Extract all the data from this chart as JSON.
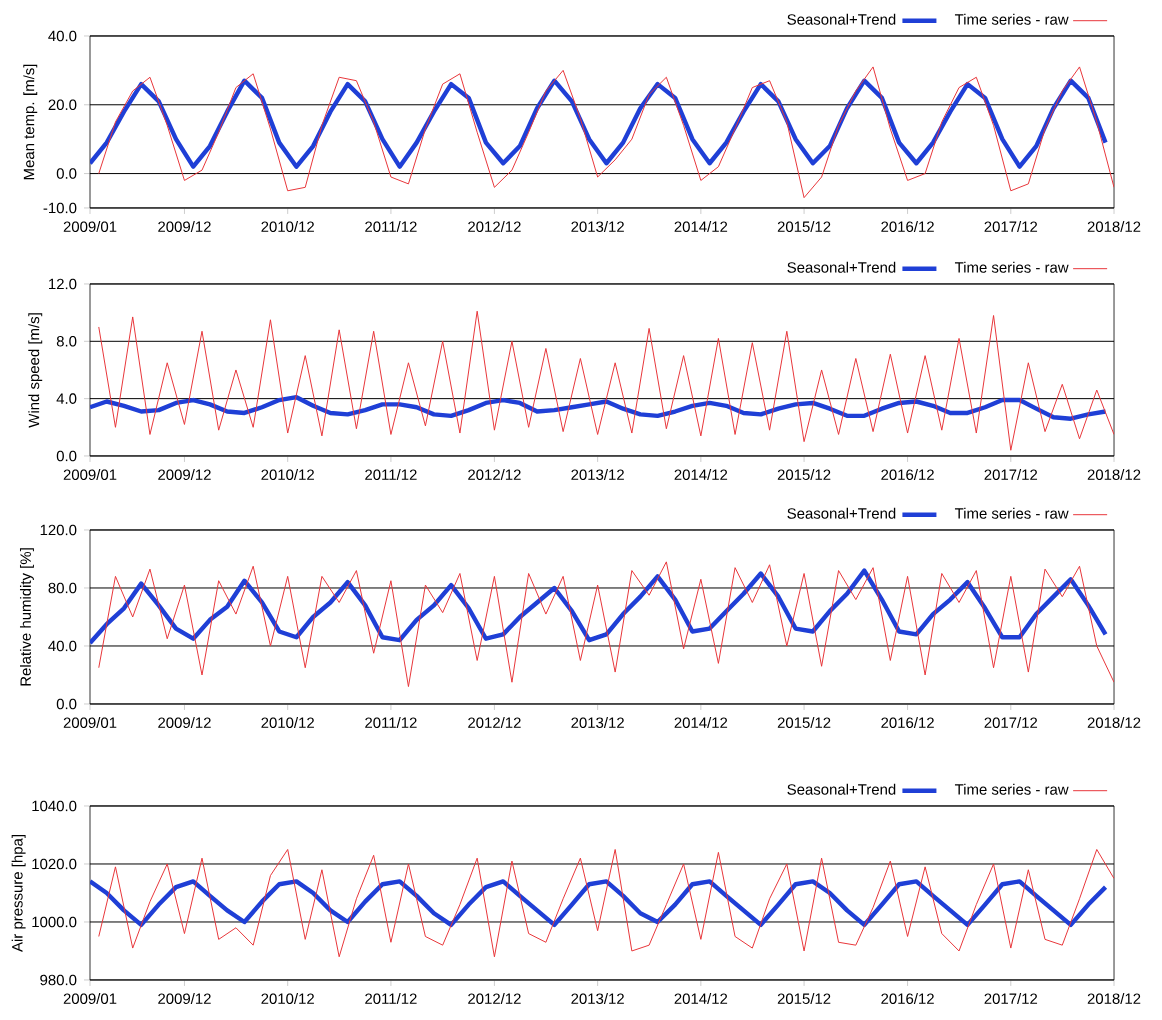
{
  "chart_data": [
    {
      "type": "line",
      "ylabel": "Mean temp. [m/s]",
      "xlim": [
        "2009-01",
        "2018-12"
      ],
      "ylim": [
        -10,
        40
      ],
      "grid": "y",
      "legend": "top right",
      "xticks": [
        {
          "value": "2009-01",
          "label": "2009/01"
        },
        {
          "value": "2009-12",
          "label": "2009/12"
        },
        {
          "value": "2010-12",
          "label": "2010/12"
        },
        {
          "value": "2011-12",
          "label": "2011/12"
        },
        {
          "value": "2012-12",
          "label": "2012/12"
        },
        {
          "value": "2013-12",
          "label": "2013/12"
        },
        {
          "value": "2014-12",
          "label": "2014/12"
        },
        {
          "value": "2015-12",
          "label": "2015/12"
        },
        {
          "value": "2016-12",
          "label": "2016/12"
        },
        {
          "value": "2017-12",
          "label": "2017/12"
        },
        {
          "value": "2018-12",
          "label": "2018/12"
        }
      ],
      "yticks": [
        {
          "value": -10,
          "label": "-10.0"
        },
        {
          "value": 0,
          "label": "0.0"
        },
        {
          "value": 20,
          "label": "20.0"
        },
        {
          "value": 40,
          "label": "40.0"
        }
      ],
      "series": [
        {
          "name": "Seasonal+Trend",
          "color": "#1f3fd6",
          "x": [
            "2009-01",
            "2009-03",
            "2009-05",
            "2009-07",
            "2009-09",
            "2009-11",
            "2010-01",
            "2010-03",
            "2010-05",
            "2010-07",
            "2010-09",
            "2010-11",
            "2011-01",
            "2011-03",
            "2011-05",
            "2011-07",
            "2011-09",
            "2011-11",
            "2012-01",
            "2012-03",
            "2012-05",
            "2012-07",
            "2012-09",
            "2012-11",
            "2013-01",
            "2013-03",
            "2013-05",
            "2013-07",
            "2013-09",
            "2013-11",
            "2014-01",
            "2014-03",
            "2014-05",
            "2014-07",
            "2014-09",
            "2014-11",
            "2015-01",
            "2015-03",
            "2015-05",
            "2015-07",
            "2015-09",
            "2015-11",
            "2016-01",
            "2016-03",
            "2016-05",
            "2016-07",
            "2016-09",
            "2016-11",
            "2017-01",
            "2017-03",
            "2017-05",
            "2017-07",
            "2017-09",
            "2017-11",
            "2018-01",
            "2018-03",
            "2018-05",
            "2018-07",
            "2018-09",
            "2018-11"
          ],
          "values": [
            3,
            9,
            18,
            26,
            21,
            10,
            2,
            8,
            18,
            27,
            22,
            9,
            2,
            8,
            18,
            26,
            21,
            10,
            2,
            9,
            18,
            26,
            22,
            9,
            3,
            8,
            19,
            27,
            21,
            10,
            3,
            9,
            19,
            26,
            22,
            10,
            3,
            9,
            18,
            26,
            21,
            10,
            3,
            8,
            19,
            27,
            22,
            9,
            3,
            9,
            18,
            26,
            22,
            10,
            2,
            8,
            19,
            27,
            22,
            9
          ]
        },
        {
          "name": "Time series - raw",
          "color": "#e8363a",
          "x": [
            "2009-02",
            "2009-04",
            "2009-06",
            "2009-08",
            "2009-10",
            "2009-12",
            "2010-02",
            "2010-04",
            "2010-06",
            "2010-08",
            "2010-10",
            "2010-12",
            "2011-02",
            "2011-04",
            "2011-06",
            "2011-08",
            "2011-10",
            "2011-12",
            "2012-02",
            "2012-04",
            "2012-06",
            "2012-08",
            "2012-10",
            "2012-12",
            "2013-02",
            "2013-04",
            "2013-06",
            "2013-08",
            "2013-10",
            "2013-12",
            "2014-02",
            "2014-04",
            "2014-06",
            "2014-08",
            "2014-10",
            "2014-12",
            "2015-02",
            "2015-04",
            "2015-06",
            "2015-08",
            "2015-10",
            "2015-12",
            "2016-02",
            "2016-04",
            "2016-06",
            "2016-08",
            "2016-10",
            "2016-12",
            "2017-02",
            "2017-04",
            "2017-06",
            "2017-08",
            "2017-10",
            "2017-12",
            "2018-02",
            "2018-04",
            "2018-06",
            "2018-08",
            "2018-10",
            "2018-12"
          ],
          "values": [
            0,
            15,
            24,
            28,
            14,
            -2,
            1,
            12,
            25,
            29,
            13,
            -5,
            -4,
            14,
            28,
            27,
            15,
            -1,
            -3,
            13,
            26,
            29,
            12,
            -4,
            1,
            12,
            24,
            30,
            16,
            -1,
            4,
            10,
            23,
            28,
            14,
            -2,
            2,
            13,
            25,
            27,
            15,
            -7,
            -1,
            14,
            24,
            31,
            13,
            -2,
            0,
            15,
            25,
            28,
            14,
            -5,
            -3,
            13,
            24,
            31,
            15,
            -4
          ]
        }
      ]
    },
    {
      "type": "line",
      "ylabel": "Wind speed [m/s]",
      "xlim": [
        "2009-01",
        "2018-12"
      ],
      "ylim": [
        0,
        12
      ],
      "grid": "y",
      "legend": "top right",
      "xticks": [
        {
          "value": "2009-01",
          "label": "2009/01"
        },
        {
          "value": "2009-12",
          "label": "2009/12"
        },
        {
          "value": "2010-12",
          "label": "2010/12"
        },
        {
          "value": "2011-12",
          "label": "2011/12"
        },
        {
          "value": "2012-12",
          "label": "2012/12"
        },
        {
          "value": "2013-12",
          "label": "2013/12"
        },
        {
          "value": "2014-12",
          "label": "2014/12"
        },
        {
          "value": "2015-12",
          "label": "2015/12"
        },
        {
          "value": "2016-12",
          "label": "2016/12"
        },
        {
          "value": "2017-12",
          "label": "2017/12"
        },
        {
          "value": "2018-12",
          "label": "2018/12"
        }
      ],
      "yticks": [
        {
          "value": 0,
          "label": "0.0"
        },
        {
          "value": 4,
          "label": "4.0"
        },
        {
          "value": 8,
          "label": "8.0"
        },
        {
          "value": 12,
          "label": "12.0"
        }
      ],
      "series": [
        {
          "name": "Seasonal+Trend",
          "color": "#1f3fd6",
          "x": [
            "2009-01",
            "2009-03",
            "2009-05",
            "2009-07",
            "2009-09",
            "2009-11",
            "2010-01",
            "2010-03",
            "2010-05",
            "2010-07",
            "2010-09",
            "2010-11",
            "2011-01",
            "2011-03",
            "2011-05",
            "2011-07",
            "2011-09",
            "2011-11",
            "2012-01",
            "2012-03",
            "2012-05",
            "2012-07",
            "2012-09",
            "2012-11",
            "2013-01",
            "2013-03",
            "2013-05",
            "2013-07",
            "2013-09",
            "2013-11",
            "2014-01",
            "2014-03",
            "2014-05",
            "2014-07",
            "2014-09",
            "2014-11",
            "2015-01",
            "2015-03",
            "2015-05",
            "2015-07",
            "2015-09",
            "2015-11",
            "2016-01",
            "2016-03",
            "2016-05",
            "2016-07",
            "2016-09",
            "2016-11",
            "2017-01",
            "2017-03",
            "2017-05",
            "2017-07",
            "2017-09",
            "2017-11",
            "2018-01",
            "2018-03",
            "2018-05",
            "2018-07",
            "2018-09",
            "2018-11"
          ],
          "values": [
            3.4,
            3.8,
            3.5,
            3.1,
            3.2,
            3.7,
            3.9,
            3.6,
            3.1,
            3.0,
            3.4,
            3.9,
            4.1,
            3.5,
            3.0,
            2.9,
            3.2,
            3.6,
            3.6,
            3.4,
            2.9,
            2.8,
            3.2,
            3.7,
            3.9,
            3.7,
            3.1,
            3.2,
            3.4,
            3.6,
            3.8,
            3.3,
            2.9,
            2.8,
            3.1,
            3.5,
            3.7,
            3.5,
            3.0,
            2.9,
            3.3,
            3.6,
            3.7,
            3.3,
            2.8,
            2.8,
            3.3,
            3.7,
            3.8,
            3.5,
            3.0,
            3.0,
            3.4,
            3.9,
            3.9,
            3.3,
            2.7,
            2.6,
            2.9,
            3.1
          ]
        },
        {
          "name": "Time series - raw",
          "color": "#e8363a",
          "x": [
            "2009-02",
            "2009-04",
            "2009-06",
            "2009-08",
            "2009-10",
            "2009-12",
            "2010-02",
            "2010-04",
            "2010-06",
            "2010-08",
            "2010-10",
            "2010-12",
            "2011-02",
            "2011-04",
            "2011-06",
            "2011-08",
            "2011-10",
            "2011-12",
            "2012-02",
            "2012-04",
            "2012-06",
            "2012-08",
            "2012-10",
            "2012-12",
            "2013-02",
            "2013-04",
            "2013-06",
            "2013-08",
            "2013-10",
            "2013-12",
            "2014-02",
            "2014-04",
            "2014-06",
            "2014-08",
            "2014-10",
            "2014-12",
            "2015-02",
            "2015-04",
            "2015-06",
            "2015-08",
            "2015-10",
            "2015-12",
            "2016-02",
            "2016-04",
            "2016-06",
            "2016-08",
            "2016-10",
            "2016-12",
            "2017-02",
            "2017-04",
            "2017-06",
            "2017-08",
            "2017-10",
            "2017-12",
            "2018-02",
            "2018-04",
            "2018-06",
            "2018-08",
            "2018-10",
            "2018-12"
          ],
          "values": [
            9.0,
            2.0,
            9.7,
            1.5,
            6.5,
            2.2,
            8.7,
            1.8,
            6.0,
            2.0,
            9.5,
            1.6,
            7.0,
            1.4,
            8.8,
            1.9,
            8.7,
            1.5,
            6.5,
            2.1,
            8.0,
            1.6,
            10.1,
            1.8,
            8.0,
            2.0,
            7.5,
            1.7,
            6.8,
            1.5,
            6.5,
            1.6,
            8.9,
            1.9,
            7.0,
            1.4,
            8.2,
            1.5,
            7.9,
            1.8,
            8.7,
            1.0,
            6.0,
            1.5,
            6.8,
            1.7,
            7.1,
            1.6,
            7.0,
            1.8,
            8.2,
            1.6,
            9.8,
            0.4,
            6.5,
            1.7,
            5.0,
            1.2,
            4.6,
            1.5
          ]
        }
      ]
    },
    {
      "type": "line",
      "ylabel": "Relative humidity [%]",
      "xlim": [
        "2009-01",
        "2018-12"
      ],
      "ylim": [
        0,
        120
      ],
      "grid": "y",
      "legend": "top right",
      "xticks": [
        {
          "value": "2009-01",
          "label": "2009/01"
        },
        {
          "value": "2009-12",
          "label": "2009/12"
        },
        {
          "value": "2010-12",
          "label": "2010/12"
        },
        {
          "value": "2011-12",
          "label": "2011/12"
        },
        {
          "value": "2012-12",
          "label": "2012/12"
        },
        {
          "value": "2013-12",
          "label": "2013/12"
        },
        {
          "value": "2014-12",
          "label": "2014/12"
        },
        {
          "value": "2015-12",
          "label": "2015/12"
        },
        {
          "value": "2016-12",
          "label": "2016/12"
        },
        {
          "value": "2017-12",
          "label": "2017/12"
        },
        {
          "value": "2018-12",
          "label": "2018/12"
        }
      ],
      "yticks": [
        {
          "value": 0,
          "label": "0.0"
        },
        {
          "value": 40,
          "label": "40.0"
        },
        {
          "value": 80,
          "label": "80.0"
        },
        {
          "value": 120,
          "label": "120.0"
        }
      ],
      "series": [
        {
          "name": "Seasonal+Trend",
          "color": "#1f3fd6",
          "x": [
            "2009-01",
            "2009-03",
            "2009-05",
            "2009-07",
            "2009-09",
            "2009-11",
            "2010-01",
            "2010-03",
            "2010-05",
            "2010-07",
            "2010-09",
            "2010-11",
            "2011-01",
            "2011-03",
            "2011-05",
            "2011-07",
            "2011-09",
            "2011-11",
            "2012-01",
            "2012-03",
            "2012-05",
            "2012-07",
            "2012-09",
            "2012-11",
            "2013-01",
            "2013-03",
            "2013-05",
            "2013-07",
            "2013-09",
            "2013-11",
            "2014-01",
            "2014-03",
            "2014-05",
            "2014-07",
            "2014-09",
            "2014-11",
            "2015-01",
            "2015-03",
            "2015-05",
            "2015-07",
            "2015-09",
            "2015-11",
            "2016-01",
            "2016-03",
            "2016-05",
            "2016-07",
            "2016-09",
            "2016-11",
            "2017-01",
            "2017-03",
            "2017-05",
            "2017-07",
            "2017-09",
            "2017-11",
            "2018-01",
            "2018-03",
            "2018-05",
            "2018-07",
            "2018-09",
            "2018-11"
          ],
          "values": [
            42,
            55,
            66,
            83,
            68,
            52,
            45,
            58,
            67,
            85,
            70,
            50,
            46,
            60,
            70,
            84,
            68,
            46,
            44,
            58,
            68,
            82,
            66,
            45,
            48,
            60,
            70,
            80,
            64,
            44,
            48,
            62,
            74,
            88,
            72,
            50,
            52,
            64,
            76,
            90,
            74,
            52,
            50,
            64,
            76,
            92,
            72,
            50,
            48,
            62,
            72,
            84,
            66,
            46,
            46,
            62,
            74,
            86,
            68,
            48
          ]
        },
        {
          "name": "Time series - raw",
          "color": "#e8363a",
          "x": [
            "2009-02",
            "2009-04",
            "2009-06",
            "2009-08",
            "2009-10",
            "2009-12",
            "2010-02",
            "2010-04",
            "2010-06",
            "2010-08",
            "2010-10",
            "2010-12",
            "2011-02",
            "2011-04",
            "2011-06",
            "2011-08",
            "2011-10",
            "2011-12",
            "2012-02",
            "2012-04",
            "2012-06",
            "2012-08",
            "2012-10",
            "2012-12",
            "2013-02",
            "2013-04",
            "2013-06",
            "2013-08",
            "2013-10",
            "2013-12",
            "2014-02",
            "2014-04",
            "2014-06",
            "2014-08",
            "2014-10",
            "2014-12",
            "2015-02",
            "2015-04",
            "2015-06",
            "2015-08",
            "2015-10",
            "2015-12",
            "2016-02",
            "2016-04",
            "2016-06",
            "2016-08",
            "2016-10",
            "2016-12",
            "2017-02",
            "2017-04",
            "2017-06",
            "2017-08",
            "2017-10",
            "2017-12",
            "2018-02",
            "2018-04",
            "2018-06",
            "2018-08",
            "2018-10",
            "2018-12"
          ],
          "values": [
            25,
            88,
            60,
            93,
            45,
            82,
            20,
            85,
            62,
            95,
            40,
            88,
            25,
            88,
            70,
            92,
            35,
            85,
            12,
            82,
            63,
            90,
            30,
            88,
            15,
            90,
            62,
            88,
            30,
            82,
            22,
            92,
            75,
            98,
            38,
            86,
            28,
            94,
            70,
            96,
            40,
            90,
            26,
            92,
            72,
            94,
            30,
            88,
            20,
            90,
            70,
            92,
            25,
            88,
            22,
            93,
            74,
            95,
            40,
            15
          ]
        }
      ]
    },
    {
      "type": "line",
      "ylabel": "Air pressure [hpa]",
      "xlim": [
        "2009-01",
        "2018-12"
      ],
      "ylim": [
        980,
        1040
      ],
      "grid": "y",
      "legend": "top right",
      "xticks": [
        {
          "value": "2009-01",
          "label": "2009/01"
        },
        {
          "value": "2009-12",
          "label": "2009/12"
        },
        {
          "value": "2010-12",
          "label": "2010/12"
        },
        {
          "value": "2011-12",
          "label": "2011/12"
        },
        {
          "value": "2012-12",
          "label": "2012/12"
        },
        {
          "value": "2013-12",
          "label": "2013/12"
        },
        {
          "value": "2014-12",
          "label": "2014/12"
        },
        {
          "value": "2015-12",
          "label": "2015/12"
        },
        {
          "value": "2016-12",
          "label": "2016/12"
        },
        {
          "value": "2017-12",
          "label": "2017/12"
        },
        {
          "value": "2018-12",
          "label": "2018/12"
        }
      ],
      "yticks": [
        {
          "value": 980,
          "label": "980.0"
        },
        {
          "value": 1000,
          "label": "1000.0"
        },
        {
          "value": 1020,
          "label": "1020.0"
        },
        {
          "value": 1040,
          "label": "1040.0"
        }
      ],
      "series": [
        {
          "name": "Seasonal+Trend",
          "color": "#1f3fd6",
          "x": [
            "2009-01",
            "2009-03",
            "2009-05",
            "2009-07",
            "2009-09",
            "2009-11",
            "2010-01",
            "2010-03",
            "2010-05",
            "2010-07",
            "2010-09",
            "2010-11",
            "2011-01",
            "2011-03",
            "2011-05",
            "2011-07",
            "2011-09",
            "2011-11",
            "2012-01",
            "2012-03",
            "2012-05",
            "2012-07",
            "2012-09",
            "2012-11",
            "2013-01",
            "2013-03",
            "2013-05",
            "2013-07",
            "2013-09",
            "2013-11",
            "2014-01",
            "2014-03",
            "2014-05",
            "2014-07",
            "2014-09",
            "2014-11",
            "2015-01",
            "2015-03",
            "2015-05",
            "2015-07",
            "2015-09",
            "2015-11",
            "2016-01",
            "2016-03",
            "2016-05",
            "2016-07",
            "2016-09",
            "2016-11",
            "2017-01",
            "2017-03",
            "2017-05",
            "2017-07",
            "2017-09",
            "2017-11",
            "2018-01",
            "2018-03",
            "2018-05",
            "2018-07",
            "2018-09",
            "2018-11"
          ],
          "values": [
            1014,
            1010,
            1004,
            999,
            1006,
            1012,
            1014,
            1009,
            1004,
            1000,
            1007,
            1013,
            1014,
            1010,
            1004,
            1000,
            1007,
            1013,
            1014,
            1009,
            1003,
            999,
            1006,
            1012,
            1014,
            1009,
            1004,
            999,
            1006,
            1013,
            1014,
            1009,
            1003,
            1000,
            1006,
            1013,
            1014,
            1009,
            1004,
            999,
            1006,
            1013,
            1014,
            1010,
            1004,
            999,
            1006,
            1013,
            1014,
            1009,
            1004,
            999,
            1006,
            1013,
            1014,
            1009,
            1004,
            999,
            1006,
            1012
          ]
        },
        {
          "name": "Time series - raw",
          "color": "#e8363a",
          "x": [
            "2009-02",
            "2009-04",
            "2009-06",
            "2009-08",
            "2009-10",
            "2009-12",
            "2010-02",
            "2010-04",
            "2010-06",
            "2010-08",
            "2010-10",
            "2010-12",
            "2011-02",
            "2011-04",
            "2011-06",
            "2011-08",
            "2011-10",
            "2011-12",
            "2012-02",
            "2012-04",
            "2012-06",
            "2012-08",
            "2012-10",
            "2012-12",
            "2013-02",
            "2013-04",
            "2013-06",
            "2013-08",
            "2013-10",
            "2013-12",
            "2014-02",
            "2014-04",
            "2014-06",
            "2014-08",
            "2014-10",
            "2014-12",
            "2015-02",
            "2015-04",
            "2015-06",
            "2015-08",
            "2015-10",
            "2015-12",
            "2016-02",
            "2016-04",
            "2016-06",
            "2016-08",
            "2016-10",
            "2016-12",
            "2017-02",
            "2017-04",
            "2017-06",
            "2017-08",
            "2017-10",
            "2017-12",
            "2018-02",
            "2018-04",
            "2018-06",
            "2018-08",
            "2018-10",
            "2018-12"
          ],
          "values": [
            995,
            1019,
            991,
            1007,
            1020,
            996,
            1022,
            994,
            998,
            992,
            1016,
            1025,
            994,
            1018,
            988,
            1008,
            1023,
            993,
            1020,
            995,
            992,
            1006,
            1022,
            988,
            1021,
            996,
            993,
            1008,
            1022,
            997,
            1025,
            990,
            992,
            1006,
            1020,
            994,
            1024,
            995,
            991,
            1008,
            1020,
            990,
            1022,
            993,
            992,
            1005,
            1021,
            995,
            1019,
            996,
            990,
            1006,
            1020,
            991,
            1018,
            994,
            992,
            1008,
            1025,
            1015
          ]
        }
      ]
    }
  ]
}
